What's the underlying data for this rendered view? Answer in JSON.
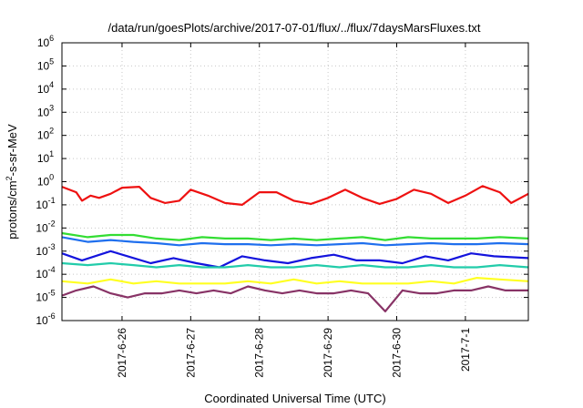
{
  "chart_data": {
    "type": "line",
    "title": "/data/run/goesPlots/archive/2017-07-01/flux/../flux/7daysMarsFluxes.txt",
    "xlabel": "Coordinated Universal Time (UTC)",
    "ylabel_parts": [
      "protons/cm",
      "2",
      "-s-sr-MeV"
    ],
    "yscale": "log",
    "ylim": [
      1e-06,
      1000000.0
    ],
    "y_ticks": [
      {
        "base": "10",
        "exp": "-6"
      },
      {
        "base": "10",
        "exp": "-5"
      },
      {
        "base": "10",
        "exp": "-4"
      },
      {
        "base": "10",
        "exp": "-3"
      },
      {
        "base": "10",
        "exp": "-2"
      },
      {
        "base": "10",
        "exp": "-1"
      },
      {
        "base": "10",
        "exp": "0"
      },
      {
        "base": "10",
        "exp": "1"
      },
      {
        "base": "10",
        "exp": "2"
      },
      {
        "base": "10",
        "exp": "3"
      },
      {
        "base": "10",
        "exp": "4"
      },
      {
        "base": "10",
        "exp": "5"
      },
      {
        "base": "10",
        "exp": "6"
      }
    ],
    "x_range_days": [
      "2017-06-25",
      "2017-07-01"
    ],
    "x_ticks": [
      {
        "label": "2017-6-26",
        "date": "2017-06-26"
      },
      {
        "label": "2017-6-27",
        "date": "2017-06-27"
      },
      {
        "label": "2017-6-28",
        "date": "2017-06-28"
      },
      {
        "label": "2017-6-29",
        "date": "2017-06-29"
      },
      {
        "label": "2017-6-30",
        "date": "2017-06-30"
      },
      {
        "label": "2017-7-1",
        "date": "2017-07-01"
      }
    ],
    "x_start": "2017-06-25 03:00",
    "x_end": "2017-07-01 22:00",
    "grid": true,
    "series": [
      {
        "color": "#ee1111",
        "x": [
          "2017-06-25 03:00",
          "2017-06-25 08:00",
          "2017-06-25 10:00",
          "2017-06-25 13:00",
          "2017-06-25 16:00",
          "2017-06-25 20:00",
          "2017-06-26 00:00",
          "2017-06-26 06:00",
          "2017-06-26 10:00",
          "2017-06-26 15:00",
          "2017-06-26 20:00",
          "2017-06-27 00:00",
          "2017-06-27 06:00",
          "2017-06-27 12:00",
          "2017-06-27 18:00",
          "2017-06-28 00:00",
          "2017-06-28 06:00",
          "2017-06-28 12:00",
          "2017-06-28 18:00",
          "2017-06-29 00:00",
          "2017-06-29 06:00",
          "2017-06-29 12:00",
          "2017-06-29 18:00",
          "2017-06-30 00:00",
          "2017-06-30 06:00",
          "2017-06-30 12:00",
          "2017-06-30 18:00",
          "2017-07-01 00:00",
          "2017-07-01 06:00",
          "2017-07-01 12:00",
          "2017-07-01 16:00",
          "2017-07-01 22:00"
        ],
        "y": [
          0.6,
          0.35,
          0.15,
          0.25,
          0.2,
          0.3,
          0.55,
          0.6,
          0.2,
          0.12,
          0.15,
          0.45,
          0.25,
          0.12,
          0.1,
          0.35,
          0.35,
          0.15,
          0.11,
          0.2,
          0.45,
          0.2,
          0.11,
          0.18,
          0.45,
          0.3,
          0.12,
          0.25,
          0.65,
          0.35,
          0.12,
          0.3
        ]
      },
      {
        "color": "#33dd33",
        "x": [
          "2017-06-25 03:00",
          "2017-06-25 12:00",
          "2017-06-25 20:00",
          "2017-06-26 04:00",
          "2017-06-26 12:00",
          "2017-06-26 20:00",
          "2017-06-27 04:00",
          "2017-06-27 12:00",
          "2017-06-27 20:00",
          "2017-06-28 04:00",
          "2017-06-28 12:00",
          "2017-06-28 20:00",
          "2017-06-29 04:00",
          "2017-06-29 12:00",
          "2017-06-29 20:00",
          "2017-06-30 04:00",
          "2017-06-30 12:00",
          "2017-06-30 20:00",
          "2017-07-01 04:00",
          "2017-07-01 12:00",
          "2017-07-01 22:00"
        ],
        "y": [
          0.006,
          0.004,
          0.005,
          0.005,
          0.0035,
          0.003,
          0.004,
          0.0035,
          0.0035,
          0.003,
          0.0035,
          0.003,
          0.0035,
          0.004,
          0.003,
          0.004,
          0.0035,
          0.0035,
          0.0035,
          0.004,
          0.0035
        ]
      },
      {
        "color": "#1f6fee",
        "x": [
          "2017-06-25 03:00",
          "2017-06-25 12:00",
          "2017-06-25 20:00",
          "2017-06-26 04:00",
          "2017-06-26 12:00",
          "2017-06-26 20:00",
          "2017-06-27 04:00",
          "2017-06-27 12:00",
          "2017-06-27 20:00",
          "2017-06-28 04:00",
          "2017-06-28 12:00",
          "2017-06-28 20:00",
          "2017-06-29 04:00",
          "2017-06-29 12:00",
          "2017-06-29 20:00",
          "2017-06-30 04:00",
          "2017-06-30 12:00",
          "2017-06-30 20:00",
          "2017-07-01 04:00",
          "2017-07-01 12:00",
          "2017-07-01 22:00"
        ],
        "y": [
          0.004,
          0.0025,
          0.003,
          0.0025,
          0.0022,
          0.0018,
          0.0022,
          0.002,
          0.002,
          0.0018,
          0.002,
          0.0018,
          0.002,
          0.0022,
          0.0018,
          0.002,
          0.0022,
          0.002,
          0.002,
          0.0022,
          0.002
        ]
      },
      {
        "color": "#1414dd",
        "x": [
          "2017-06-25 03:00",
          "2017-06-25 10:00",
          "2017-06-25 20:00",
          "2017-06-26 02:00",
          "2017-06-26 10:00",
          "2017-06-26 18:00",
          "2017-06-27 02:00",
          "2017-06-27 10:00",
          "2017-06-27 18:00",
          "2017-06-28 02:00",
          "2017-06-28 10:00",
          "2017-06-28 18:00",
          "2017-06-29 02:00",
          "2017-06-29 10:00",
          "2017-06-29 18:00",
          "2017-06-30 02:00",
          "2017-06-30 10:00",
          "2017-06-30 18:00",
          "2017-07-01 02:00",
          "2017-07-01 10:00",
          "2017-07-01 22:00"
        ],
        "y": [
          0.0008,
          0.0004,
          0.001,
          0.0006,
          0.0003,
          0.0005,
          0.0003,
          0.0002,
          0.0006,
          0.0004,
          0.0003,
          0.0005,
          0.0007,
          0.0004,
          0.0004,
          0.0003,
          0.0006,
          0.0004,
          0.0008,
          0.0006,
          0.0005
        ]
      },
      {
        "color": "#22ccaa",
        "x": [
          "2017-06-25 03:00",
          "2017-06-25 12:00",
          "2017-06-25 20:00",
          "2017-06-26 04:00",
          "2017-06-26 12:00",
          "2017-06-26 20:00",
          "2017-06-27 04:00",
          "2017-06-27 12:00",
          "2017-06-27 20:00",
          "2017-06-28 04:00",
          "2017-06-28 12:00",
          "2017-06-28 20:00",
          "2017-06-29 04:00",
          "2017-06-29 12:00",
          "2017-06-29 20:00",
          "2017-06-30 04:00",
          "2017-06-30 12:00",
          "2017-06-30 20:00",
          "2017-07-01 04:00",
          "2017-07-01 12:00",
          "2017-07-01 22:00"
        ],
        "y": [
          0.0003,
          0.00025,
          0.0003,
          0.00025,
          0.0002,
          0.00025,
          0.0002,
          0.0002,
          0.00025,
          0.0002,
          0.0002,
          0.00025,
          0.0002,
          0.00025,
          0.0002,
          0.0002,
          0.00025,
          0.0002,
          0.0002,
          0.00025,
          0.0002
        ]
      },
      {
        "color": "#ffff22",
        "x": [
          "2017-06-25 03:00",
          "2017-06-25 12:00",
          "2017-06-25 20:00",
          "2017-06-26 04:00",
          "2017-06-26 12:00",
          "2017-06-26 20:00",
          "2017-06-27 04:00",
          "2017-06-27 12:00",
          "2017-06-27 20:00",
          "2017-06-28 04:00",
          "2017-06-28 12:00",
          "2017-06-28 20:00",
          "2017-06-29 04:00",
          "2017-06-29 12:00",
          "2017-06-29 20:00",
          "2017-06-30 04:00",
          "2017-06-30 12:00",
          "2017-06-30 20:00",
          "2017-07-01 04:00",
          "2017-07-01 12:00",
          "2017-07-01 22:00"
        ],
        "y": [
          5e-05,
          4e-05,
          6e-05,
          4e-05,
          5e-05,
          4e-05,
          4e-05,
          4e-05,
          5e-05,
          4e-05,
          6e-05,
          4e-05,
          5e-05,
          4e-05,
          4e-05,
          4e-05,
          5e-05,
          4e-05,
          7e-05,
          6e-05,
          5e-05
        ]
      },
      {
        "color": "#883366",
        "x": [
          "2017-06-25 03:00",
          "2017-06-25 08:00",
          "2017-06-25 14:00",
          "2017-06-25 20:00",
          "2017-06-26 02:00",
          "2017-06-26 08:00",
          "2017-06-26 14:00",
          "2017-06-26 20:00",
          "2017-06-27 02:00",
          "2017-06-27 08:00",
          "2017-06-27 14:00",
          "2017-06-27 20:00",
          "2017-06-28 02:00",
          "2017-06-28 08:00",
          "2017-06-28 14:00",
          "2017-06-28 20:00",
          "2017-06-29 02:00",
          "2017-06-29 08:00",
          "2017-06-29 14:00",
          "2017-06-29 20:00",
          "2017-06-30 02:00",
          "2017-06-30 08:00",
          "2017-06-30 14:00",
          "2017-06-30 20:00",
          "2017-07-01 02:00",
          "2017-07-01 08:00",
          "2017-07-01 14:00",
          "2017-07-01 22:00"
        ],
        "y": [
          1.2e-05,
          2e-05,
          3e-05,
          1.5e-05,
          1e-05,
          1.5e-05,
          1.5e-05,
          2e-05,
          1.5e-05,
          2e-05,
          1.5e-05,
          3e-05,
          2e-05,
          1.5e-05,
          2e-05,
          1.5e-05,
          1.5e-05,
          2e-05,
          1.5e-05,
          2.5e-06,
          2e-05,
          1.5e-05,
          1.5e-05,
          2e-05,
          2e-05,
          3e-05,
          2e-05,
          2e-05
        ]
      }
    ]
  }
}
